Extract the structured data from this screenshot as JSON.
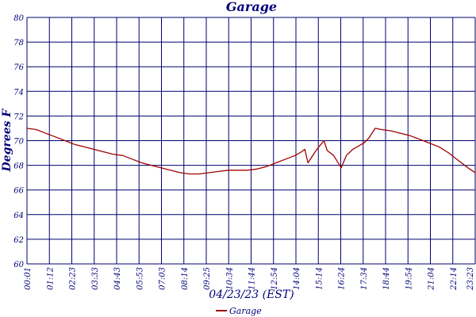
{
  "chart_data": {
    "type": "line",
    "title": "Garage",
    "xlabel": "04/23/23 (EST)",
    "ylabel": "Degrees F",
    "ylim": [
      60,
      80
    ],
    "yticks": [
      60,
      62,
      64,
      66,
      68,
      70,
      72,
      74,
      76,
      78,
      80
    ],
    "xticks": [
      "00:01",
      "01:12",
      "02:23",
      "03:33",
      "04:43",
      "05:53",
      "07:03",
      "08:14",
      "09:25",
      "10:34",
      "11:44",
      "12:54",
      "14:04",
      "15:14",
      "16:24",
      "17:34",
      "18:44",
      "19:54",
      "21:04",
      "22:14",
      "23:23"
    ],
    "grid": true,
    "legend_position": "bottom-center",
    "colors": {
      "series": "#a00000",
      "grid": "#00006b",
      "text": "#00007a"
    },
    "series": [
      {
        "name": "Garage",
        "x": [
          "00:01",
          "00:30",
          "01:00",
          "01:30",
          "02:00",
          "02:30",
          "03:00",
          "03:30",
          "04:00",
          "04:30",
          "05:00",
          "05:30",
          "06:00",
          "06:30",
          "07:00",
          "07:30",
          "08:00",
          "08:30",
          "09:00",
          "09:30",
          "10:00",
          "10:30",
          "11:00",
          "11:30",
          "12:00",
          "12:30",
          "13:00",
          "13:30",
          "14:00",
          "14:20",
          "14:30",
          "14:40",
          "15:00",
          "15:14",
          "15:30",
          "15:40",
          "16:00",
          "16:24",
          "16:40",
          "17:00",
          "17:34",
          "17:50",
          "18:10",
          "18:30",
          "19:00",
          "19:30",
          "20:00",
          "20:30",
          "21:00",
          "21:30",
          "22:00",
          "22:30",
          "23:00",
          "23:23"
        ],
        "values": [
          71.0,
          70.9,
          70.6,
          70.3,
          70.0,
          69.7,
          69.5,
          69.3,
          69.1,
          68.9,
          68.8,
          68.5,
          68.2,
          68.0,
          67.8,
          67.6,
          67.4,
          67.3,
          67.3,
          67.4,
          67.5,
          67.6,
          67.6,
          67.6,
          67.7,
          67.9,
          68.2,
          68.5,
          68.8,
          69.1,
          69.3,
          68.2,
          69.0,
          69.5,
          70.0,
          69.2,
          68.8,
          67.8,
          68.8,
          69.3,
          69.8,
          70.2,
          71.0,
          70.9,
          70.8,
          70.6,
          70.4,
          70.1,
          69.8,
          69.5,
          69.0,
          68.4,
          67.8,
          67.4
        ]
      }
    ]
  }
}
